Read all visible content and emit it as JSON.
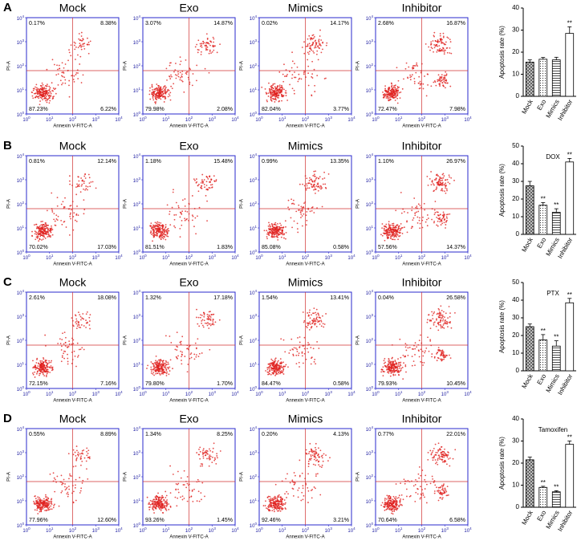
{
  "flow_axes": {
    "x_label": "Annexin V-FITC-A",
    "y_label": "PI-A",
    "base": "10",
    "exponents": [
      0,
      1,
      2,
      3,
      4
    ]
  },
  "panels": [
    {
      "label": "A",
      "flow": [
        {
          "title": "Mock",
          "ul": "0.17%",
          "ur": "8.38%",
          "ll": "87.23%",
          "lr": "6.22%"
        },
        {
          "title": "Exo",
          "ul": "3.07%",
          "ur": "14.87%",
          "ll": "79.98%",
          "lr": "2.08%"
        },
        {
          "title": "Mimics",
          "ul": "0.02%",
          "ur": "14.17%",
          "ll": "82.04%",
          "lr": "3.77%"
        },
        {
          "title": "Inhibitor",
          "ul": "2.68%",
          "ur": "16.87%",
          "ll": "72.47%",
          "lr": "7.98%"
        }
      ]
    },
    {
      "label": "B",
      "flow": [
        {
          "title": "Mock",
          "ul": "0.81%",
          "ur": "12.14%",
          "ll": "70.02%",
          "lr": "17.03%"
        },
        {
          "title": "Exo",
          "ul": "1.18%",
          "ur": "15.48%",
          "ll": "81.51%",
          "lr": "1.83%"
        },
        {
          "title": "Mimics",
          "ul": "0.99%",
          "ur": "13.35%",
          "ll": "85.08%",
          "lr": "0.58%"
        },
        {
          "title": "Inhibitor",
          "ul": "1.10%",
          "ur": "26.97%",
          "ll": "57.56%",
          "lr": "14.37%"
        }
      ]
    },
    {
      "label": "C",
      "flow": [
        {
          "title": "Mock",
          "ul": "2.61%",
          "ur": "18.08%",
          "ll": "72.15%",
          "lr": "7.16%"
        },
        {
          "title": "Exo",
          "ul": "1.32%",
          "ur": "17.18%",
          "ll": "79.80%",
          "lr": "1.70%"
        },
        {
          "title": "Mimics",
          "ul": "1.54%",
          "ur": "13.41%",
          "ll": "84.47%",
          "lr": "0.58%"
        },
        {
          "title": "Inhibitor",
          "ul": "0.04%",
          "ur": "26.58%",
          "ll": "79.93%",
          "lr": "10.45%"
        }
      ]
    },
    {
      "label": "D",
      "flow": [
        {
          "title": "Mock",
          "ul": "0.55%",
          "ur": "8.89%",
          "ll": "77.96%",
          "lr": "12.60%"
        },
        {
          "title": "Exo",
          "ul": "1.34%",
          "ur": "8.25%",
          "ll": "93.26%",
          "lr": "1.45%"
        },
        {
          "title": "Mimics",
          "ul": "0.20%",
          "ur": "4.13%",
          "ll": "92.46%",
          "lr": "3.21%"
        },
        {
          "title": "Inhibitor",
          "ul": "0.77%",
          "ur": "22.01%",
          "ll": "70.64%",
          "lr": "6.58%"
        }
      ]
    }
  ],
  "chart_data": [
    {
      "type": "bar",
      "y_label": "Apoptosis rate (%)",
      "categories": [
        "Mock",
        "Exo",
        "Mimics",
        "Inhibitor"
      ],
      "values": [
        15.5,
        16.8,
        16.5,
        28.5
      ],
      "errors": [
        1,
        0.8,
        1.2,
        3
      ],
      "significance": [
        null,
        null,
        null,
        "**"
      ],
      "patterns": [
        "crosshatch",
        "dots",
        "hlines",
        "none"
      ],
      "ylim": [
        0,
        40
      ],
      "yticks": [
        0,
        10,
        20,
        30,
        40
      ]
    },
    {
      "type": "bar",
      "title": "DOX",
      "y_label": "Apoptosis rate (%)",
      "categories": [
        "Mock",
        "Exo",
        "Mimics",
        "Inhibitor"
      ],
      "values": [
        27.5,
        16.5,
        12.5,
        41
      ],
      "errors": [
        2.5,
        1.5,
        2,
        2
      ],
      "significance": [
        null,
        "**",
        "**",
        "**"
      ],
      "patterns": [
        "crosshatch",
        "dots",
        "hlines",
        "none"
      ],
      "ylim": [
        0,
        50
      ],
      "yticks": [
        0,
        10,
        20,
        30,
        40,
        50
      ]
    },
    {
      "type": "bar",
      "title": "PTX",
      "y_label": "Apoptosis rate (%)",
      "categories": [
        "Mock",
        "Exo",
        "Mimics",
        "Inhibitor"
      ],
      "values": [
        25,
        17.5,
        14,
        38.5
      ],
      "errors": [
        1.5,
        3,
        3,
        2.5
      ],
      "significance": [
        null,
        "**",
        "**",
        "**"
      ],
      "patterns": [
        "crosshatch",
        "dots",
        "hlines",
        "none"
      ],
      "ylim": [
        0,
        50
      ],
      "yticks": [
        0,
        10,
        20,
        30,
        40,
        50
      ]
    },
    {
      "type": "bar",
      "title": "Tamoxifen",
      "y_label": "Apoptosis rate (%)",
      "categories": [
        "Mock",
        "Exo",
        "Mimics",
        "Inhibitor"
      ],
      "values": [
        21.5,
        9,
        7,
        28.5
      ],
      "errors": [
        1.2,
        0.5,
        0.5,
        1.5
      ],
      "significance": [
        null,
        "**",
        "**",
        "**"
      ],
      "patterns": [
        "crosshatch",
        "dots",
        "hlines",
        "none"
      ],
      "ylim": [
        0,
        40
      ],
      "yticks": [
        0,
        10,
        20,
        30,
        40
      ]
    }
  ]
}
